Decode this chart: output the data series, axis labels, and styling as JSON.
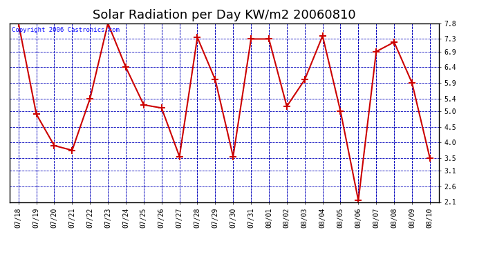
{
  "title": "Solar Radiation per Day KW/m2 20060810",
  "copyright": "Copyright 2006 Castronics.com",
  "labels": [
    "07/18",
    "07/19",
    "07/20",
    "07/21",
    "07/22",
    "07/23",
    "07/24",
    "07/25",
    "07/26",
    "07/27",
    "07/28",
    "07/29",
    "07/30",
    "07/31",
    "08/01",
    "08/02",
    "08/03",
    "08/04",
    "08/05",
    "08/06",
    "08/07",
    "08/08",
    "08/09",
    "08/10"
  ],
  "values": [
    7.8,
    4.9,
    3.9,
    3.75,
    5.4,
    7.8,
    6.4,
    5.2,
    5.1,
    3.55,
    7.35,
    6.0,
    3.55,
    7.3,
    7.3,
    5.15,
    6.0,
    7.4,
    5.0,
    2.15,
    6.9,
    7.2,
    5.9,
    3.5
  ],
  "line_color": "#cc0000",
  "marker": "+",
  "marker_color": "#cc0000",
  "bg_color": "#ffffff",
  "plot_bg": "#ffffff",
  "grid_color": "#0000bb",
  "ylim": [
    2.1,
    7.8
  ],
  "yticks": [
    2.1,
    2.6,
    3.1,
    3.5,
    4.0,
    4.5,
    5.0,
    5.4,
    5.9,
    6.4,
    6.9,
    7.3,
    7.8
  ],
  "title_fontsize": 13,
  "copyright_fontsize": 6.5,
  "tick_fontsize": 7,
  "fig_width": 6.9,
  "fig_height": 3.75,
  "dpi": 100
}
